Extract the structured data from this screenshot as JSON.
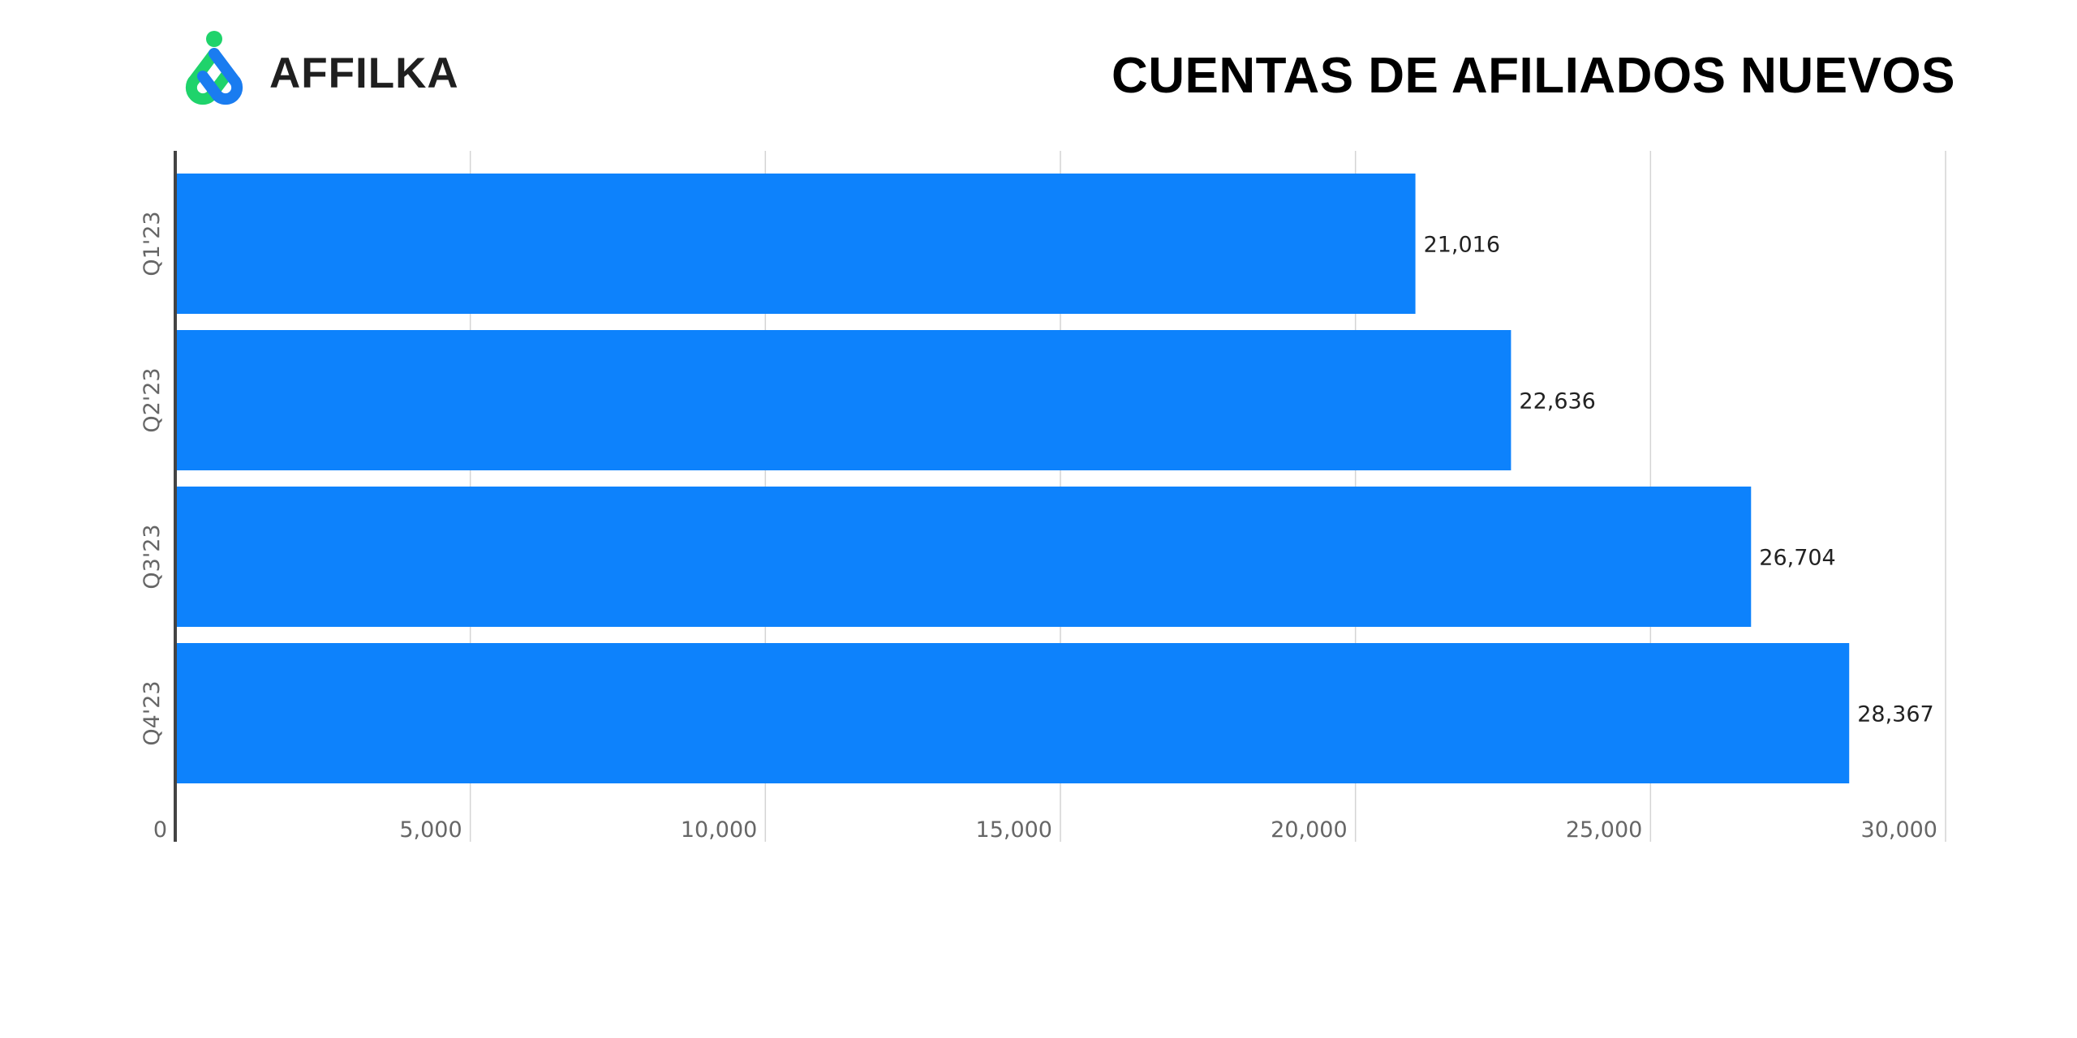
{
  "brand": {
    "name": "AFFILKA",
    "logo_icon": "affilka-logo-icon",
    "colors": {
      "green": "#1fd36b",
      "blue": "#1a7cf0"
    }
  },
  "chart_data": {
    "type": "bar",
    "orientation": "horizontal",
    "title": "CUENTAS DE AFILIADOS NUEVOS",
    "categories": [
      "Q1'23",
      "Q2'23",
      "Q3'23",
      "Q4'23"
    ],
    "values": [
      21016,
      22636,
      26704,
      28367
    ],
    "value_labels": [
      "21,016",
      "22,636",
      "26,704",
      "28,367"
    ],
    "xlim": [
      0,
      30000
    ],
    "x_ticks": [
      0,
      5000,
      10000,
      15000,
      20000,
      25000,
      30000
    ],
    "x_tick_labels": [
      "0",
      "5,000",
      "10,000",
      "15,000",
      "20,000",
      "25,000",
      "30,000"
    ],
    "xlabel": "",
    "ylabel": "",
    "grid": "vertical",
    "legend": "none",
    "bar_color": "#0d82fc"
  }
}
